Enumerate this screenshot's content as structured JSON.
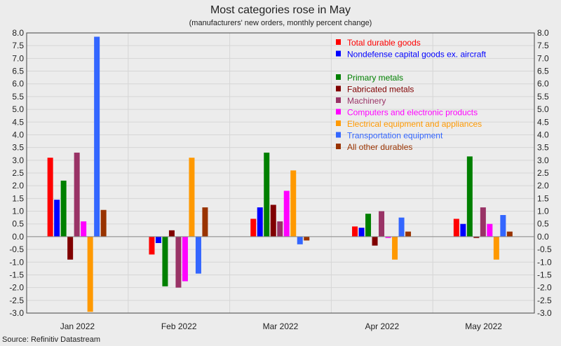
{
  "chart_data": {
    "type": "bar",
    "title": "Most categories rose in May",
    "subtitle": "(manufacturers' new orders, monthly percent change)",
    "source": "Source: Refinitiv Datastream",
    "categories": [
      "Jan 2022",
      "Feb 2022",
      "Mar 2022",
      "Apr 2022",
      "May 2022"
    ],
    "ylim": [
      -3.0,
      8.0
    ],
    "ytick_step": 0.5,
    "grid": true,
    "legend_position": "top-right",
    "series": [
      {
        "name": "Total durable goods",
        "color": "#ff0000",
        "values": [
          3.1,
          -0.7,
          0.7,
          0.4,
          0.7
        ]
      },
      {
        "name": "Nondefense capital goods ex. aircraft",
        "color": "#0000ff",
        "values": [
          1.45,
          -0.25,
          1.15,
          0.35,
          0.5
        ]
      },
      {
        "name": "Primary metals",
        "color": "#008000",
        "values": [
          2.2,
          -1.95,
          3.3,
          0.9,
          3.15
        ]
      },
      {
        "name": "Fabricated metals",
        "color": "#800000",
        "values": [
          -0.9,
          0.25,
          1.25,
          -0.35,
          -0.05
        ]
      },
      {
        "name": "Machinery",
        "color": "#993366",
        "values": [
          3.3,
          -2.0,
          0.6,
          1.0,
          1.15
        ]
      },
      {
        "name": "Computers and electronic products",
        "color": "#ff00ff",
        "values": [
          0.6,
          -1.75,
          1.8,
          -0.05,
          0.5
        ]
      },
      {
        "name": "Electrical equipment and appliances",
        "color": "#ff9900",
        "values": [
          -2.95,
          3.1,
          2.6,
          -0.9,
          -0.9
        ]
      },
      {
        "name": "Transportation equipment",
        "color": "#3366ff",
        "values": [
          7.85,
          -1.45,
          -0.3,
          0.75,
          0.85
        ]
      },
      {
        "name": "All other durables",
        "color": "#993300",
        "values": [
          1.05,
          1.15,
          -0.15,
          0.2,
          0.2
        ]
      }
    ]
  }
}
